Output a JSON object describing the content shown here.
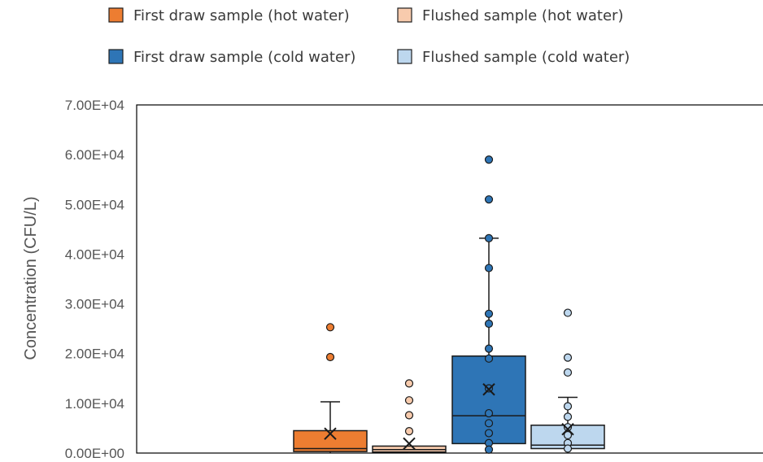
{
  "chart_data": {
    "type": "box",
    "xlabel": "",
    "ylabel": "Concentration (CFU/L)",
    "ylim": [
      0,
      70000
    ],
    "yticks": [
      {
        "value": 0,
        "label": "0.00E+00"
      },
      {
        "value": 10000,
        "label": "1.00E+04"
      },
      {
        "value": 20000,
        "label": "2.00E+04"
      },
      {
        "value": 30000,
        "label": "3.00E+04"
      },
      {
        "value": 40000,
        "label": "4.00E+04"
      },
      {
        "value": 50000,
        "label": "5.00E+04"
      },
      {
        "value": 60000,
        "label": "6.00E+04"
      },
      {
        "value": 70000,
        "label": "7.00E+04"
      }
    ],
    "grid": false,
    "legend_position": "top",
    "series": [
      {
        "name": "First draw sample (hot water)",
        "color": "#ED7D31",
        "min": 0,
        "q1": 300,
        "median": 900,
        "q3": 4500,
        "whisker_high": 10300,
        "mean": 3900,
        "points": [
          25300,
          19300
        ]
      },
      {
        "name": "Flushed sample (hot water)",
        "color": "#F8CBAD",
        "min": 0,
        "q1": 200,
        "median": 700,
        "q3": 1400,
        "whisker_high": 1400,
        "mean": 1900,
        "points": [
          14000,
          10600,
          7600,
          4400
        ]
      },
      {
        "name": "First draw sample (cold water)",
        "color": "#2E75B6",
        "min": 700,
        "q1": 1900,
        "median": 7500,
        "q3": 19500,
        "whisker_high": 43200,
        "mean": 12800,
        "points": [
          59000,
          51000,
          43200,
          37200,
          28000,
          26000,
          21000,
          19000,
          13000,
          8000,
          6000,
          4000,
          2000,
          700
        ]
      },
      {
        "name": "Flushed sample (cold water)",
        "color": "#BDD7EE",
        "min": 500,
        "q1": 900,
        "median": 1600,
        "q3": 5600,
        "whisker_high": 11200,
        "mean": 4800,
        "points": [
          28200,
          19200,
          16200,
          9400,
          7300,
          5200,
          3600,
          2000,
          900
        ]
      }
    ]
  }
}
